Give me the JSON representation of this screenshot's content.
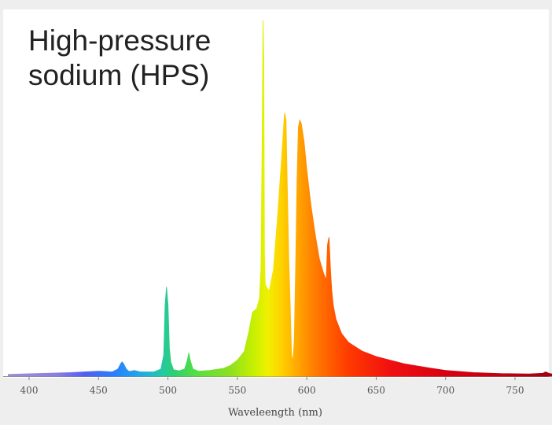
{
  "chart_data": {
    "type": "area",
    "title": "High-pressure\nsodium (HPS)",
    "xlabel": "Waveleength (nm)",
    "ylabel": "",
    "xlim": [
      385,
      780
    ],
    "ylim": [
      0,
      1.0
    ],
    "x_ticks": [
      400,
      450,
      500,
      550,
      600,
      650,
      700,
      750
    ],
    "x_tick_labels": [
      "400",
      "450",
      "500",
      "550",
      "600",
      "650",
      "700",
      "750"
    ],
    "grid": false,
    "legend": "none",
    "fill": "visible-spectrum gradient",
    "series": [
      {
        "x": [
          385,
          430,
          440,
          450,
          455,
          460,
          464,
          466,
          467,
          468,
          470,
          472,
          476,
          480,
          490,
          495,
          497,
          498,
          499,
          500,
          501,
          502,
          504,
          508,
          512,
          514,
          515,
          516,
          518,
          522,
          530,
          540,
          545,
          550,
          555,
          558,
          561,
          564,
          566,
          567,
          568,
          568.5,
          569,
          569.5,
          570,
          571,
          573,
          576,
          579,
          582,
          584,
          585,
          586,
          587,
          588,
          589,
          590,
          591,
          592,
          593,
          594,
          595,
          596,
          598,
          600,
          603,
          606,
          609,
          612,
          614,
          615,
          616,
          617,
          618,
          619,
          621,
          625,
          630,
          640,
          650,
          660,
          670,
          680,
          690,
          700,
          720,
          740,
          760,
          770,
          772,
          775,
          780
        ],
        "y": [
          0.005,
          0.01,
          0.012,
          0.014,
          0.013,
          0.012,
          0.02,
          0.035,
          0.04,
          0.035,
          0.02,
          0.013,
          0.016,
          0.012,
          0.012,
          0.02,
          0.06,
          0.2,
          0.25,
          0.2,
          0.08,
          0.04,
          0.018,
          0.015,
          0.02,
          0.045,
          0.065,
          0.045,
          0.02,
          0.014,
          0.016,
          0.022,
          0.03,
          0.045,
          0.07,
          0.12,
          0.18,
          0.19,
          0.22,
          0.3,
          0.7,
          1.0,
          0.9,
          0.35,
          0.26,
          0.25,
          0.24,
          0.3,
          0.45,
          0.62,
          0.74,
          0.72,
          0.52,
          0.33,
          0.2,
          0.06,
          0.04,
          0.1,
          0.3,
          0.55,
          0.7,
          0.72,
          0.71,
          0.66,
          0.58,
          0.48,
          0.4,
          0.33,
          0.29,
          0.27,
          0.37,
          0.39,
          0.3,
          0.24,
          0.2,
          0.16,
          0.12,
          0.095,
          0.07,
          0.055,
          0.045,
          0.035,
          0.028,
          0.022,
          0.016,
          0.01,
          0.007,
          0.006,
          0.008,
          0.012,
          0.007,
          0.004
        ]
      }
    ]
  }
}
